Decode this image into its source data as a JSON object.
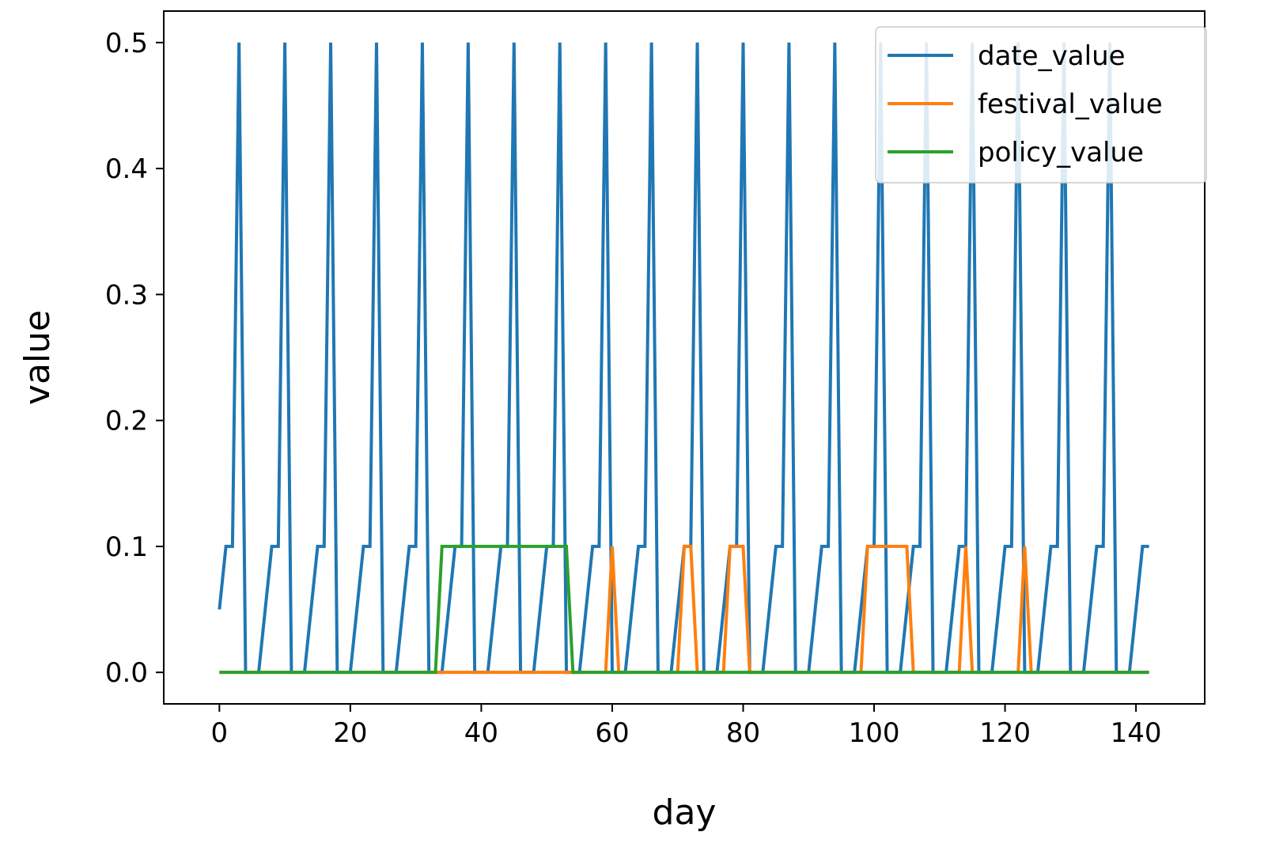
{
  "chart_data": {
    "type": "line",
    "xlabel": "day",
    "ylabel": "value",
    "xlim": [
      -8.5,
      150.5
    ],
    "ylim": [
      -0.025,
      0.525
    ],
    "xticks": [
      0,
      20,
      40,
      60,
      80,
      100,
      120,
      140
    ],
    "xtick_labels": [
      "0",
      "20",
      "40",
      "60",
      "80",
      "100",
      "120",
      "140"
    ],
    "yticks": [
      0.0,
      0.1,
      0.2,
      0.3,
      0.4,
      0.5
    ],
    "ytick_labels": [
      "0.0",
      "0.1",
      "0.2",
      "0.3",
      "0.4",
      "0.5"
    ],
    "legend_position": "top-right",
    "grid": false,
    "series": [
      {
        "name": "date_value",
        "color": "#1f77b4",
        "x": [
          0,
          1,
          2,
          3,
          4,
          5,
          6,
          7,
          8,
          9,
          10,
          11,
          12,
          13,
          14,
          15,
          16,
          17,
          18,
          19,
          20,
          21,
          22,
          23,
          24,
          25,
          26,
          27,
          28,
          29,
          30,
          31,
          32,
          33,
          34,
          35,
          36,
          37,
          38,
          39,
          40,
          41,
          42,
          43,
          44,
          45,
          46,
          47,
          48,
          49,
          50,
          51,
          52,
          53,
          54,
          55,
          56,
          57,
          58,
          59,
          60,
          61,
          62,
          63,
          64,
          65,
          66,
          67,
          68,
          69,
          70,
          71,
          72,
          73,
          74,
          75,
          76,
          77,
          78,
          79,
          80,
          81,
          82,
          83,
          84,
          85,
          86,
          87,
          88,
          89,
          90,
          91,
          92,
          93,
          94,
          95,
          96,
          97,
          98,
          99,
          100,
          101,
          102,
          103,
          104,
          105,
          106,
          107,
          108,
          109,
          110,
          111,
          112,
          113,
          114,
          115,
          116,
          117,
          118,
          119,
          120,
          121,
          122,
          123,
          124,
          125,
          126,
          127,
          128,
          129,
          130,
          131,
          132,
          133,
          134,
          135,
          136,
          137,
          138,
          139,
          140,
          141,
          142
        ],
        "values": [
          0.05,
          0.1,
          0.1,
          0.5,
          0,
          0,
          0,
          0.05,
          0.1,
          0.1,
          0.5,
          0,
          0,
          0,
          0.05,
          0.1,
          0.1,
          0.5,
          0,
          0,
          0,
          0.05,
          0.1,
          0.1,
          0.5,
          0,
          0,
          0,
          0.05,
          0.1,
          0.1,
          0.5,
          0,
          0,
          0,
          0.05,
          0.1,
          0.1,
          0.5,
          0,
          0,
          0,
          0.05,
          0.1,
          0.1,
          0.5,
          0,
          0,
          0,
          0.05,
          0.1,
          0.1,
          0.5,
          0,
          0,
          0,
          0.05,
          0.1,
          0.1,
          0.5,
          0,
          0,
          0,
          0.05,
          0.1,
          0.1,
          0.5,
          0,
          0,
          0,
          0.05,
          0.1,
          0.1,
          0.5,
          0,
          0,
          0,
          0.05,
          0.1,
          0.1,
          0.5,
          0,
          0,
          0,
          0.05,
          0.1,
          0.1,
          0.5,
          0,
          0,
          0,
          0.05,
          0.1,
          0.1,
          0.5,
          0,
          0,
          0,
          0.05,
          0.1,
          0.1,
          0.5,
          0,
          0,
          0,
          0.05,
          0.1,
          0.1,
          0.5,
          0,
          0,
          0,
          0.05,
          0.1,
          0.1,
          0.5,
          0,
          0,
          0,
          0.05,
          0.1,
          0.1,
          0.5,
          0,
          0,
          0,
          0.05,
          0.1,
          0.1,
          0.5,
          0,
          0,
          0,
          0.05,
          0.1,
          0.1,
          0.5,
          0,
          0,
          0,
          0.05,
          0.1,
          0.1
        ]
      },
      {
        "name": "festival_value",
        "color": "#ff7f0e",
        "x": [
          0,
          59,
          60,
          61,
          70,
          71,
          72,
          73,
          77,
          78,
          79,
          80,
          81,
          98,
          99,
          100,
          101,
          102,
          103,
          104,
          105,
          106,
          113,
          114,
          115,
          122,
          123,
          124,
          142
        ],
        "values": [
          0,
          0,
          0.1,
          0,
          0,
          0.1,
          0.1,
          0,
          0,
          0.1,
          0.1,
          0.1,
          0,
          0,
          0.1,
          0.1,
          0.1,
          0.1,
          0.1,
          0.1,
          0.1,
          0,
          0,
          0.1,
          0,
          0,
          0.1,
          0,
          0
        ]
      },
      {
        "name": "policy_value",
        "color": "#2ca02c",
        "x": [
          0,
          33,
          34,
          53,
          54,
          142
        ],
        "values": [
          0,
          0,
          0.1,
          0.1,
          0,
          0
        ]
      }
    ]
  }
}
